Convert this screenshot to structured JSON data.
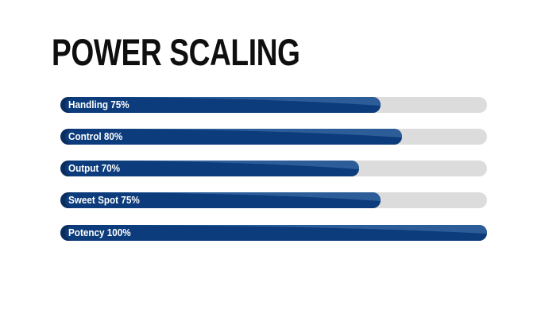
{
  "title": "POWER SCALING",
  "colors": {
    "background": "#ffffff",
    "title_text": "#0f0f0f",
    "bar_fill": "#0d3c7c",
    "bar_highlight": "#2d5d99",
    "bar_cap_shadow": "#0a2c5e",
    "track": "#dcdcdc",
    "label_text": "#ffffff"
  },
  "chart_data": {
    "type": "bar",
    "orientation": "horizontal",
    "title": "POWER SCALING",
    "categories": [
      "Handling",
      "Control",
      "Output",
      "Sweet Spot",
      "Potency"
    ],
    "values": [
      75,
      80,
      70,
      75,
      100
    ],
    "labels": [
      "Handling 75%",
      "Control 80%",
      "Output 70%",
      "Sweet Spot 75%",
      "Potency 100%"
    ],
    "value_range": [
      0,
      100
    ],
    "value_suffix": "%",
    "grid": false,
    "legend": "none",
    "labels_position": "inside-left"
  }
}
